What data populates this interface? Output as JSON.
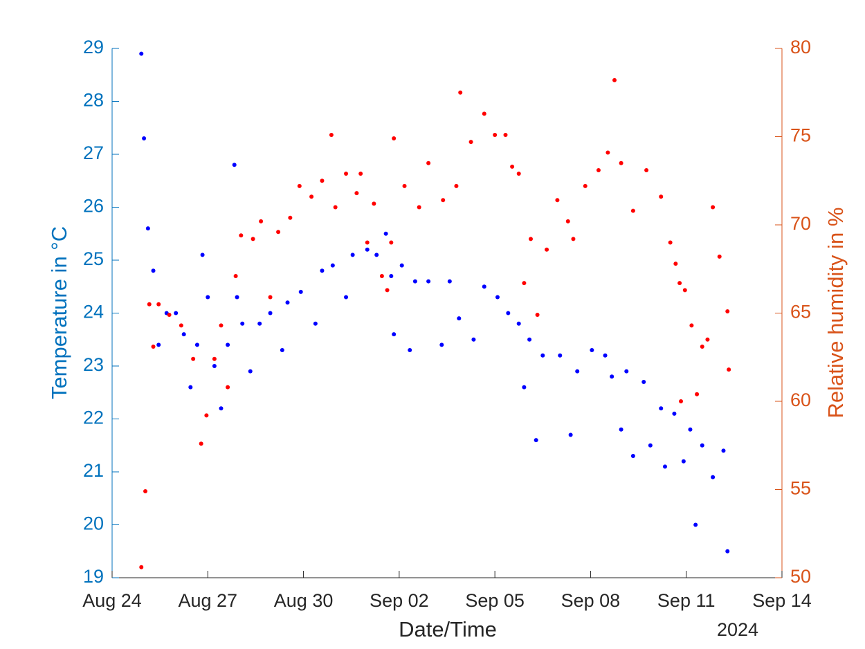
{
  "chart_data": {
    "type": "scatter",
    "xlabel": "Date/Time",
    "xaxis_year": "2024",
    "ylabel": "Temperature in °C",
    "y2label": "Relative humidity in %",
    "xlim": [
      "2024-08-24T00:00",
      "2024-09-14T00:00"
    ],
    "xticks": [
      {
        "value": "2024-08-24T00:00",
        "label": "Aug 24"
      },
      {
        "value": "2024-08-27T00:00",
        "label": "Aug 27"
      },
      {
        "value": "2024-08-30T00:00",
        "label": "Aug 30"
      },
      {
        "value": "2024-09-02T00:00",
        "label": "Sep 02"
      },
      {
        "value": "2024-09-05T00:00",
        "label": "Sep 05"
      },
      {
        "value": "2024-09-08T00:00",
        "label": "Sep 08"
      },
      {
        "value": "2024-09-11T00:00",
        "label": "Sep 11"
      },
      {
        "value": "2024-09-14T00:00",
        "label": "Sep 14"
      }
    ],
    "ylim": [
      19,
      29
    ],
    "yticks": [
      19,
      20,
      21,
      22,
      23,
      24,
      25,
      26,
      27,
      28,
      29
    ],
    "y2lim": [
      50,
      80
    ],
    "y2ticks": [
      50,
      55,
      60,
      65,
      70,
      75,
      80
    ],
    "y_axis_color": "#0072bd",
    "y2_axis_color": "#d95319",
    "grid": false,
    "series": [
      {
        "color": "#0000ff",
        "axis": "y",
        "x": [
          "2024-08-24T22:00",
          "2024-08-25T00:00",
          "2024-08-25T03:00",
          "2024-08-25T07:00",
          "2024-08-25T11:00",
          "2024-08-25T17:00",
          "2024-08-26T00:00",
          "2024-08-26T06:00",
          "2024-08-26T11:00",
          "2024-08-26T16:00",
          "2024-08-26T20:00",
          "2024-08-27T00:00",
          "2024-08-27T05:00",
          "2024-08-27T10:00",
          "2024-08-27T15:00",
          "2024-08-27T20:00",
          "2024-08-27T22:00",
          "2024-08-28T02:00",
          "2024-08-28T08:00",
          "2024-08-28T15:00",
          "2024-08-28T23:00",
          "2024-08-29T08:00",
          "2024-08-29T12:00",
          "2024-08-29T22:00",
          "2024-08-30T09:00",
          "2024-08-30T14:00",
          "2024-08-30T22:00",
          "2024-08-31T08:00",
          "2024-08-31T13:00",
          "2024-09-01T00:00",
          "2024-09-01T07:00",
          "2024-09-01T14:00",
          "2024-09-01T18:00",
          "2024-09-01T20:00",
          "2024-09-02T02:00",
          "2024-09-02T08:00",
          "2024-09-02T12:00",
          "2024-09-02T22:00",
          "2024-09-03T08:00",
          "2024-09-03T14:00",
          "2024-09-03T21:00",
          "2024-09-04T08:00",
          "2024-09-04T16:00",
          "2024-09-05T02:00",
          "2024-09-05T10:00",
          "2024-09-05T18:00",
          "2024-09-05T22:00",
          "2024-09-06T02:00",
          "2024-09-06T07:00",
          "2024-09-06T12:00",
          "2024-09-07T01:00",
          "2024-09-07T09:00",
          "2024-09-07T14:00",
          "2024-09-08T01:00",
          "2024-09-08T11:00",
          "2024-09-08T16:00",
          "2024-09-08T23:00",
          "2024-09-09T03:00",
          "2024-09-09T08:00",
          "2024-09-09T16:00",
          "2024-09-09T21:00",
          "2024-09-10T05:00",
          "2024-09-10T08:00",
          "2024-09-10T15:00",
          "2024-09-10T22:00",
          "2024-09-11T03:00",
          "2024-09-11T07:00",
          "2024-09-11T12:00",
          "2024-09-11T20:00",
          "2024-09-12T04:00",
          "2024-09-12T07:00"
        ],
        "values": [
          28.9,
          27.3,
          25.6,
          24.8,
          23.4,
          24.0,
          24.0,
          23.6,
          22.6,
          23.4,
          25.1,
          24.3,
          23.0,
          22.2,
          23.4,
          26.8,
          24.3,
          23.8,
          22.9,
          23.8,
          24.0,
          23.3,
          24.2,
          24.4,
          23.8,
          24.8,
          24.9,
          24.3,
          25.1,
          25.2,
          25.1,
          25.5,
          24.7,
          23.6,
          24.9,
          23.3,
          24.6,
          24.6,
          23.4,
          24.6,
          23.9,
          23.5,
          24.5,
          24.3,
          24.0,
          23.8,
          22.6,
          23.5,
          21.6,
          23.2,
          23.2,
          21.7,
          22.9,
          23.3,
          23.2,
          22.8,
          21.8,
          22.9,
          21.3,
          22.7,
          21.5,
          22.2,
          21.1,
          22.1,
          21.2,
          21.8,
          20.0,
          21.5,
          20.9,
          21.4,
          19.5
        ]
      },
      {
        "color": "#ff0000",
        "axis": "y2",
        "x": [
          "2024-08-24T22:00",
          "2024-08-25T01:00",
          "2024-08-25T04:00",
          "2024-08-25T07:00",
          "2024-08-25T11:00",
          "2024-08-25T19:00",
          "2024-08-26T04:00",
          "2024-08-26T13:00",
          "2024-08-26T19:00",
          "2024-08-26T23:00",
          "2024-08-27T05:00",
          "2024-08-27T10:00",
          "2024-08-27T15:00",
          "2024-08-27T21:00",
          "2024-08-28T01:00",
          "2024-08-28T10:00",
          "2024-08-28T16:00",
          "2024-08-28T23:00",
          "2024-08-29T05:00",
          "2024-08-29T14:00",
          "2024-08-29T21:00",
          "2024-08-30T06:00",
          "2024-08-30T14:00",
          "2024-08-30T21:00",
          "2024-08-31T00:00",
          "2024-08-31T08:00",
          "2024-08-31T16:00",
          "2024-08-31T19:00",
          "2024-09-01T00:00",
          "2024-09-01T05:00",
          "2024-09-01T11:00",
          "2024-09-01T15:00",
          "2024-09-01T18:00",
          "2024-09-01T20:00",
          "2024-09-02T04:00",
          "2024-09-02T15:00",
          "2024-09-02T22:00",
          "2024-09-03T09:00",
          "2024-09-03T19:00",
          "2024-09-03T22:00",
          "2024-09-04T06:00",
          "2024-09-04T16:00",
          "2024-09-05T00:00",
          "2024-09-05T08:00",
          "2024-09-05T13:00",
          "2024-09-05T18:00",
          "2024-09-05T22:00",
          "2024-09-06T03:00",
          "2024-09-06T08:00",
          "2024-09-06T15:00",
          "2024-09-06T23:00",
          "2024-09-07T07:00",
          "2024-09-07T11:00",
          "2024-09-07T20:00",
          "2024-09-08T06:00",
          "2024-09-08T13:00",
          "2024-09-08T18:00",
          "2024-09-08T23:00",
          "2024-09-09T08:00",
          "2024-09-09T18:00",
          "2024-09-10T05:00",
          "2024-09-10T12:00",
          "2024-09-10T16:00",
          "2024-09-10T19:00",
          "2024-09-10T20:00",
          "2024-09-10T23:00",
          "2024-09-11T04:00",
          "2024-09-11T08:00",
          "2024-09-11T12:00",
          "2024-09-11T16:00",
          "2024-09-11T20:00",
          "2024-09-12T01:00",
          "2024-09-12T07:00",
          "2024-09-12T08:00"
        ],
        "values": [
          50.6,
          54.9,
          65.5,
          63.1,
          65.5,
          64.9,
          64.3,
          62.4,
          57.6,
          59.2,
          62.4,
          64.3,
          60.8,
          67.1,
          69.4,
          69.2,
          70.2,
          65.9,
          69.6,
          70.4,
          72.2,
          71.6,
          72.5,
          75.1,
          71.0,
          72.9,
          71.8,
          72.9,
          69.0,
          71.2,
          67.1,
          66.3,
          69.0,
          74.9,
          72.2,
          71.0,
          73.5,
          71.4,
          72.2,
          77.5,
          74.7,
          76.3,
          75.1,
          75.1,
          73.3,
          72.9,
          66.7,
          69.2,
          64.9,
          68.6,
          71.4,
          70.2,
          69.2,
          72.2,
          73.1,
          74.1,
          78.2,
          73.5,
          70.8,
          73.1,
          71.6,
          69.0,
          67.8,
          66.7,
          60.0,
          66.3,
          64.3,
          60.4,
          63.1,
          63.5,
          71.0,
          68.2,
          65.1,
          61.8
        ]
      }
    ]
  }
}
